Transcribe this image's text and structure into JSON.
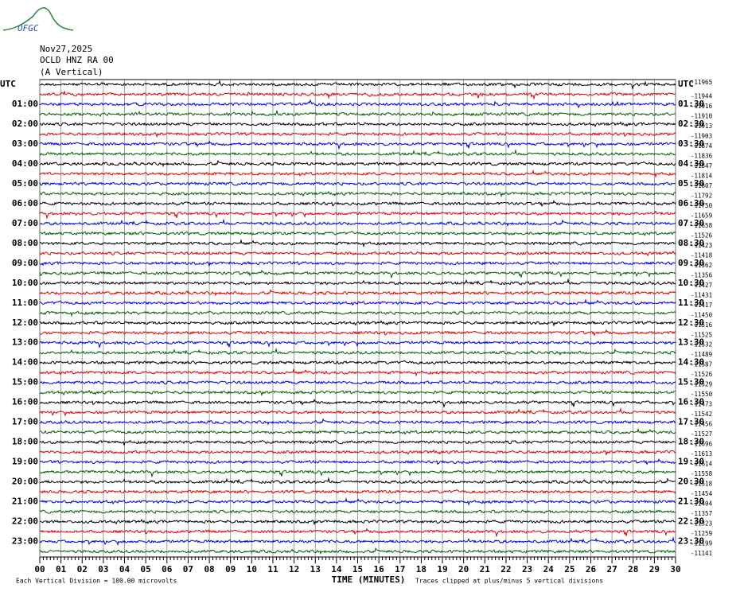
{
  "logo": "OFGC",
  "header": {
    "date": "Nov27,2025",
    "station": "OCLD HNZ RA 00",
    "component": "(A Vertical)"
  },
  "left_labels": [
    "UTC",
    "01:00",
    "02:00",
    "03:00",
    "04:00",
    "05:00",
    "06:00",
    "07:00",
    "08:00",
    "09:00",
    "10:00",
    "11:00",
    "12:00",
    "13:00",
    "14:00",
    "15:00",
    "16:00",
    "17:00",
    "18:00",
    "19:00",
    "20:00",
    "21:00",
    "22:00",
    "23:00"
  ],
  "right_labels": [
    "UTC",
    "01:30",
    "02:30",
    "03:30",
    "04:30",
    "05:30",
    "06:30",
    "07:30",
    "08:30",
    "09:30",
    "10:30",
    "11:30",
    "12:30",
    "13:30",
    "14:30",
    "15:30",
    "16:30",
    "17:30",
    "18:30",
    "19:30",
    "20:30",
    "21:30",
    "22:30",
    "23:30"
  ],
  "trace_offsets": [
    "-11965",
    "-11944",
    "-11916",
    "-11910",
    "-11913",
    "-11903",
    "-11874",
    "-11836",
    "-11847",
    "-11814",
    "-11807",
    "-11792",
    "-11750",
    "-11659",
    "-11658",
    "-11526",
    "-11423",
    "-11418",
    "-11362",
    "-11356",
    "-11427",
    "-11431",
    "-11417",
    "-11450",
    "-11516",
    "-11525",
    "-11532",
    "-11489",
    "-11587",
    "-11526",
    "-11529",
    "-11550",
    "-11473",
    "-11542",
    "-11456",
    "-11527",
    "-11696",
    "-11613",
    "-11614",
    "-11558",
    "-11518",
    "-11454",
    "-11404",
    "-11357",
    "-11323",
    "-11259",
    "-11199",
    "-11141"
  ],
  "trace_colors": [
    "#000000",
    "#e00000",
    "#0000e0",
    "#006000"
  ],
  "x_axis": {
    "title": "TIME (MINUTES)",
    "ticks": [
      "00",
      "01",
      "02",
      "03",
      "04",
      "05",
      "06",
      "07",
      "08",
      "09",
      "10",
      "11",
      "12",
      "13",
      "14",
      "15",
      "16",
      "17",
      "18",
      "19",
      "20",
      "21",
      "22",
      "23",
      "24",
      "25",
      "26",
      "27",
      "28",
      "29",
      "30"
    ]
  },
  "footer": {
    "scale": "Each Vertical Division =  100.00 microvolts",
    "clip": "Traces clipped at plus/minus 5 vertical divisions"
  }
}
